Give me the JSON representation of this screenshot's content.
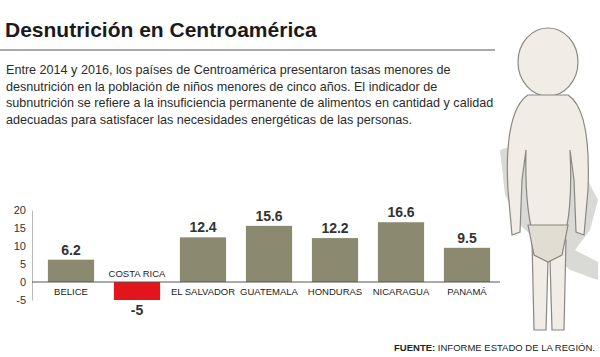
{
  "chart_data": {
    "type": "bar",
    "title": "Desnutrición en Centroamérica",
    "subtitle": "Entre 2014 y 2016, los países de Centroamérica presentaron tasas menores de desnutrición en la población de niños menores de cinco años.  El indicador de subnutrición se refiere a la insuficiencia permanente de alimentos en cantidad y calidad adecuadas para satisfacer las necesidades energéticas de las personas.",
    "categories": [
      "BELICE",
      "COSTA RICA",
      "EL SALVADOR",
      "GUATEMALA",
      "HONDURAS",
      "NICARAGUA",
      "PANAMÁ"
    ],
    "values": [
      6.2,
      -5,
      12.4,
      15.6,
      12.2,
      16.6,
      9.5
    ],
    "colors": [
      "#8b8a70",
      "#e3141c",
      "#8b8a70",
      "#8b8a70",
      "#8b8a70",
      "#8b8a70",
      "#8b8a70"
    ],
    "ylim": [
      -5,
      20
    ],
    "yticks": [
      -5,
      0,
      5,
      10,
      15,
      20
    ],
    "grid": false,
    "data_labels": true,
    "source_label": "FUENTE:",
    "source": "INFORME ESTADO DE LA REGIÓN."
  }
}
